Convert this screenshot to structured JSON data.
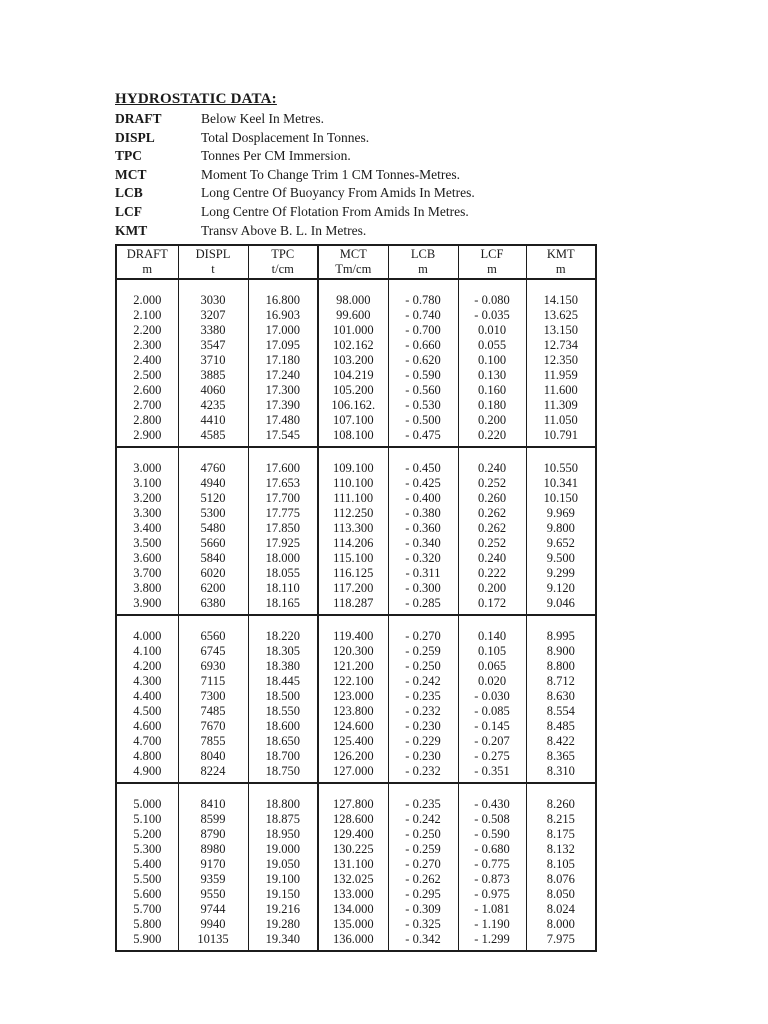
{
  "page": {
    "title": "HYDROSTATIC DATA:"
  },
  "definitions": [
    {
      "term": "DRAFT",
      "text": "Below Keel In Metres."
    },
    {
      "term": "DISPL",
      "text": "Total Dosplacement In Tonnes."
    },
    {
      "term": "TPC",
      "text": "Tonnes Per CM Immersion."
    },
    {
      "term": "MCT",
      "text": "Moment To Change Trim 1 CM Tonnes-Metres."
    },
    {
      "term": "LCB",
      "text": "Long Centre Of Buoyancy From Amids In Metres."
    },
    {
      "term": "LCF",
      "text": "Long Centre Of Flotation From Amids In Metres."
    },
    {
      "term": "KMT",
      "text": "Transv Above B. L. In Metres."
    }
  ],
  "table": {
    "columns": [
      {
        "label": "DRAFT",
        "unit": "m"
      },
      {
        "label": "DISPL",
        "unit": "t"
      },
      {
        "label": "TPC",
        "unit": "t/cm"
      },
      {
        "label": "MCT",
        "unit": "Tm/cm"
      },
      {
        "label": "LCB",
        "unit": "m"
      },
      {
        "label": "LCF",
        "unit": "m"
      },
      {
        "label": "KMT",
        "unit": "m"
      }
    ],
    "blocks": [
      {
        "rows": [
          [
            "2.000",
            "3030",
            "16.800",
            "98.000",
            "- 0.780",
            "- 0.080",
            "14.150"
          ],
          [
            "2.100",
            "3207",
            "16.903",
            "99.600",
            "- 0.740",
            "- 0.035",
            "13.625"
          ],
          [
            "2.200",
            "3380",
            "17.000",
            "101.000",
            "- 0.700",
            "0.010",
            "13.150"
          ],
          [
            "2.300",
            "3547",
            "17.095",
            "102.162",
            "- 0.660",
            "0.055",
            "12.734"
          ],
          [
            "2.400",
            "3710",
            "17.180",
            "103.200",
            "- 0.620",
            "0.100",
            "12.350"
          ],
          [
            "2.500",
            "3885",
            "17.240",
            "104.219",
            "- 0.590",
            "0.130",
            "11.959"
          ],
          [
            "2.600",
            "4060",
            "17.300",
            "105.200",
            "- 0.560",
            "0.160",
            "11.600"
          ],
          [
            "2.700",
            "4235",
            "17.390",
            "106.162.",
            "- 0.530",
            "0.180",
            "11.309"
          ],
          [
            "2.800",
            "4410",
            "17.480",
            "107.100",
            "- 0.500",
            "0.200",
            "11.050"
          ],
          [
            "2.900",
            "4585",
            "17.545",
            "108.100",
            "- 0.475",
            "0.220",
            "10.791"
          ]
        ]
      },
      {
        "rows": [
          [
            "3.000",
            "4760",
            "17.600",
            "109.100",
            "- 0.450",
            "0.240",
            "10.550"
          ],
          [
            "3.100",
            "4940",
            "17.653",
            "110.100",
            "- 0.425",
            "0.252",
            "10.341"
          ],
          [
            "3.200",
            "5120",
            "17.700",
            "111.100",
            "- 0.400",
            "0.260",
            "10.150"
          ],
          [
            "3.300",
            "5300",
            "17.775",
            "112.250",
            "- 0.380",
            "0.262",
            "9.969"
          ],
          [
            "3.400",
            "5480",
            "17.850",
            "113.300",
            "- 0.360",
            "0.262",
            "9.800"
          ],
          [
            "3.500",
            "5660",
            "17.925",
            "114.206",
            "- 0.340",
            "0.252",
            "9.652"
          ],
          [
            "3.600",
            "5840",
            "18.000",
            "115.100",
            "- 0.320",
            "0.240",
            "9.500"
          ],
          [
            "3.700",
            "6020",
            "18.055",
            "116.125",
            "- 0.311",
            "0.222",
            "9.299"
          ],
          [
            "3.800",
            "6200",
            "18.110",
            "117.200",
            "- 0.300",
            "0.200",
            "9.120"
          ],
          [
            "3.900",
            "6380",
            "18.165",
            "118.287",
            "- 0.285",
            "0.172",
            "9.046"
          ]
        ]
      },
      {
        "rows": [
          [
            "4.000",
            "6560",
            "18.220",
            "119.400",
            "- 0.270",
            "0.140",
            "8.995"
          ],
          [
            "4.100",
            "6745",
            "18.305",
            "120.300",
            "- 0.259",
            "0.105",
            "8.900"
          ],
          [
            "4.200",
            "6930",
            "18.380",
            "121.200",
            "- 0.250",
            "0.065",
            "8.800"
          ],
          [
            "4.300",
            "7115",
            "18.445",
            "122.100",
            "- 0.242",
            "0.020",
            "8.712"
          ],
          [
            "4.400",
            "7300",
            "18.500",
            "123.000",
            "- 0.235",
            "- 0.030",
            "8.630"
          ],
          [
            "4.500",
            "7485",
            "18.550",
            "123.800",
            "- 0.232",
            "- 0.085",
            "8.554"
          ],
          [
            "4.600",
            "7670",
            "18.600",
            "124.600",
            "- 0.230",
            "- 0.145",
            "8.485"
          ],
          [
            "4.700",
            "7855",
            "18.650",
            "125.400",
            "- 0.229",
            "- 0.207",
            "8.422"
          ],
          [
            "4.800",
            "8040",
            "18.700",
            "126.200",
            "- 0.230",
            "- 0.275",
            "8.365"
          ],
          [
            "4.900",
            "8224",
            "18.750",
            "127.000",
            "- 0.232",
            "- 0.351",
            "8.310"
          ]
        ]
      },
      {
        "rows": [
          [
            "5.000",
            "8410",
            "18.800",
            "127.800",
            "- 0.235",
            "- 0.430",
            "8.260"
          ],
          [
            "5.100",
            "8599",
            "18.875",
            "128.600",
            "- 0.242",
            "- 0.508",
            "8.215"
          ],
          [
            "5.200",
            "8790",
            "18.950",
            "129.400",
            "- 0.250",
            "- 0.590",
            "8.175"
          ],
          [
            "5.300",
            "8980",
            "19.000",
            "130.225",
            "- 0.259",
            "- 0.680",
            "8.132"
          ],
          [
            "5.400",
            "9170",
            "19.050",
            "131.100",
            "- 0.270",
            "- 0.775",
            "8.105"
          ],
          [
            "5.500",
            "9359",
            "19.100",
            "132.025",
            "- 0.262",
            "- 0.873",
            "8.076"
          ],
          [
            "5.600",
            "9550",
            "19.150",
            "133.000",
            "- 0.295",
            "- 0.975",
            "8.050"
          ],
          [
            "5.700",
            "9744",
            "19.216",
            "134.000",
            "- 0.309",
            "- 1.081",
            "8.024"
          ],
          [
            "5.800",
            "9940",
            "19.280",
            "135.000",
            "- 0.325",
            "- 1.190",
            "8.000"
          ],
          [
            "5.900",
            "10135",
            "19.340",
            "136.000",
            "- 0.342",
            "- 1.299",
            "7.975"
          ]
        ]
      }
    ]
  },
  "colors": {
    "ink": "#1a1a1a",
    "page_bg": "#ffffff"
  }
}
